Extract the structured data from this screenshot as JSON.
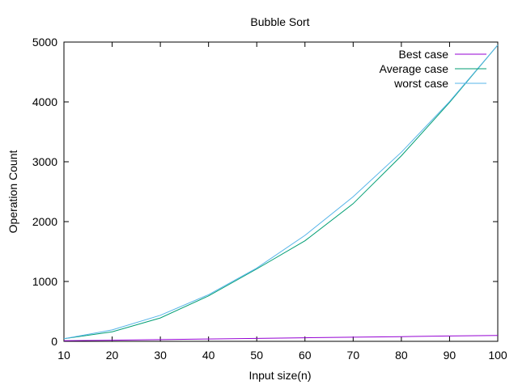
{
  "chart_data": {
    "type": "line",
    "title": "Bubble Sort",
    "xlabel": "Input size(n)",
    "ylabel": "Operation Count",
    "xlim": [
      10,
      100
    ],
    "ylim": [
      0,
      5000
    ],
    "x_ticks": [
      10,
      20,
      30,
      40,
      50,
      60,
      70,
      80,
      90,
      100
    ],
    "y_ticks": [
      0,
      1000,
      2000,
      3000,
      4000,
      5000
    ],
    "grid": false,
    "legend_position": "top-right",
    "x": [
      10,
      20,
      30,
      40,
      50,
      60,
      70,
      80,
      90,
      100
    ],
    "series": [
      {
        "name": "Best case",
        "color": "#9400d3",
        "values": [
          9,
          19,
          29,
          39,
          49,
          59,
          69,
          79,
          89,
          99
        ]
      },
      {
        "name": "Average case",
        "color": "#009e73",
        "values": [
          45,
          160,
          390,
          760,
          1210,
          1680,
          2300,
          3100,
          3990,
          4950
        ]
      },
      {
        "name": "worst case",
        "color": "#56b4e9",
        "values": [
          45,
          190,
          435,
          780,
          1225,
          1770,
          2415,
          3160,
          4005,
          4950
        ]
      }
    ]
  }
}
